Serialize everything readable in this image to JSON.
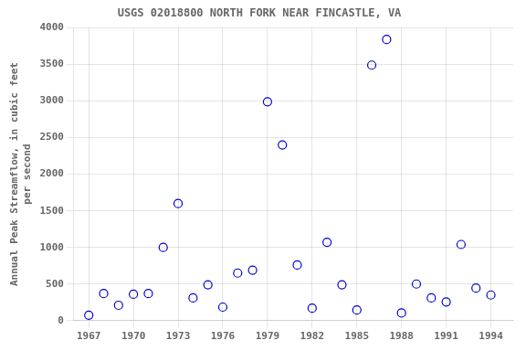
{
  "chart_data": {
    "type": "scatter",
    "title": "USGS 02018800 NORTH FORK NEAR FINCASTLE, VA",
    "ylabel": "Annual Peak Streamflow, in cubic feet\nper second",
    "x": [
      1967,
      1968,
      1969,
      1970,
      1971,
      1972,
      1973,
      1974,
      1975,
      1976,
      1977,
      1978,
      1979,
      1980,
      1981,
      1982,
      1983,
      1984,
      1985,
      1986,
      1987,
      1988,
      1989,
      1990,
      1991,
      1992,
      1993,
      1994
    ],
    "values": [
      75,
      370,
      210,
      360,
      370,
      1000,
      1600,
      310,
      490,
      185,
      650,
      690,
      2990,
      2400,
      760,
      170,
      1070,
      490,
      145,
      3490,
      3840,
      105,
      500,
      310,
      255,
      1040,
      445,
      350
    ],
    "color": "#0000CC",
    "marker": "open_circle",
    "xlim": [
      1966.0,
      1995.5
    ],
    "ylim": [
      0,
      4000
    ],
    "xticks": [
      1967,
      1970,
      1973,
      1976,
      1979,
      1982,
      1985,
      1988,
      1991,
      1994
    ],
    "yticks": [
      0,
      500,
      1000,
      1500,
      2000,
      2500,
      3000,
      3500,
      4000
    ],
    "grid": true
  }
}
